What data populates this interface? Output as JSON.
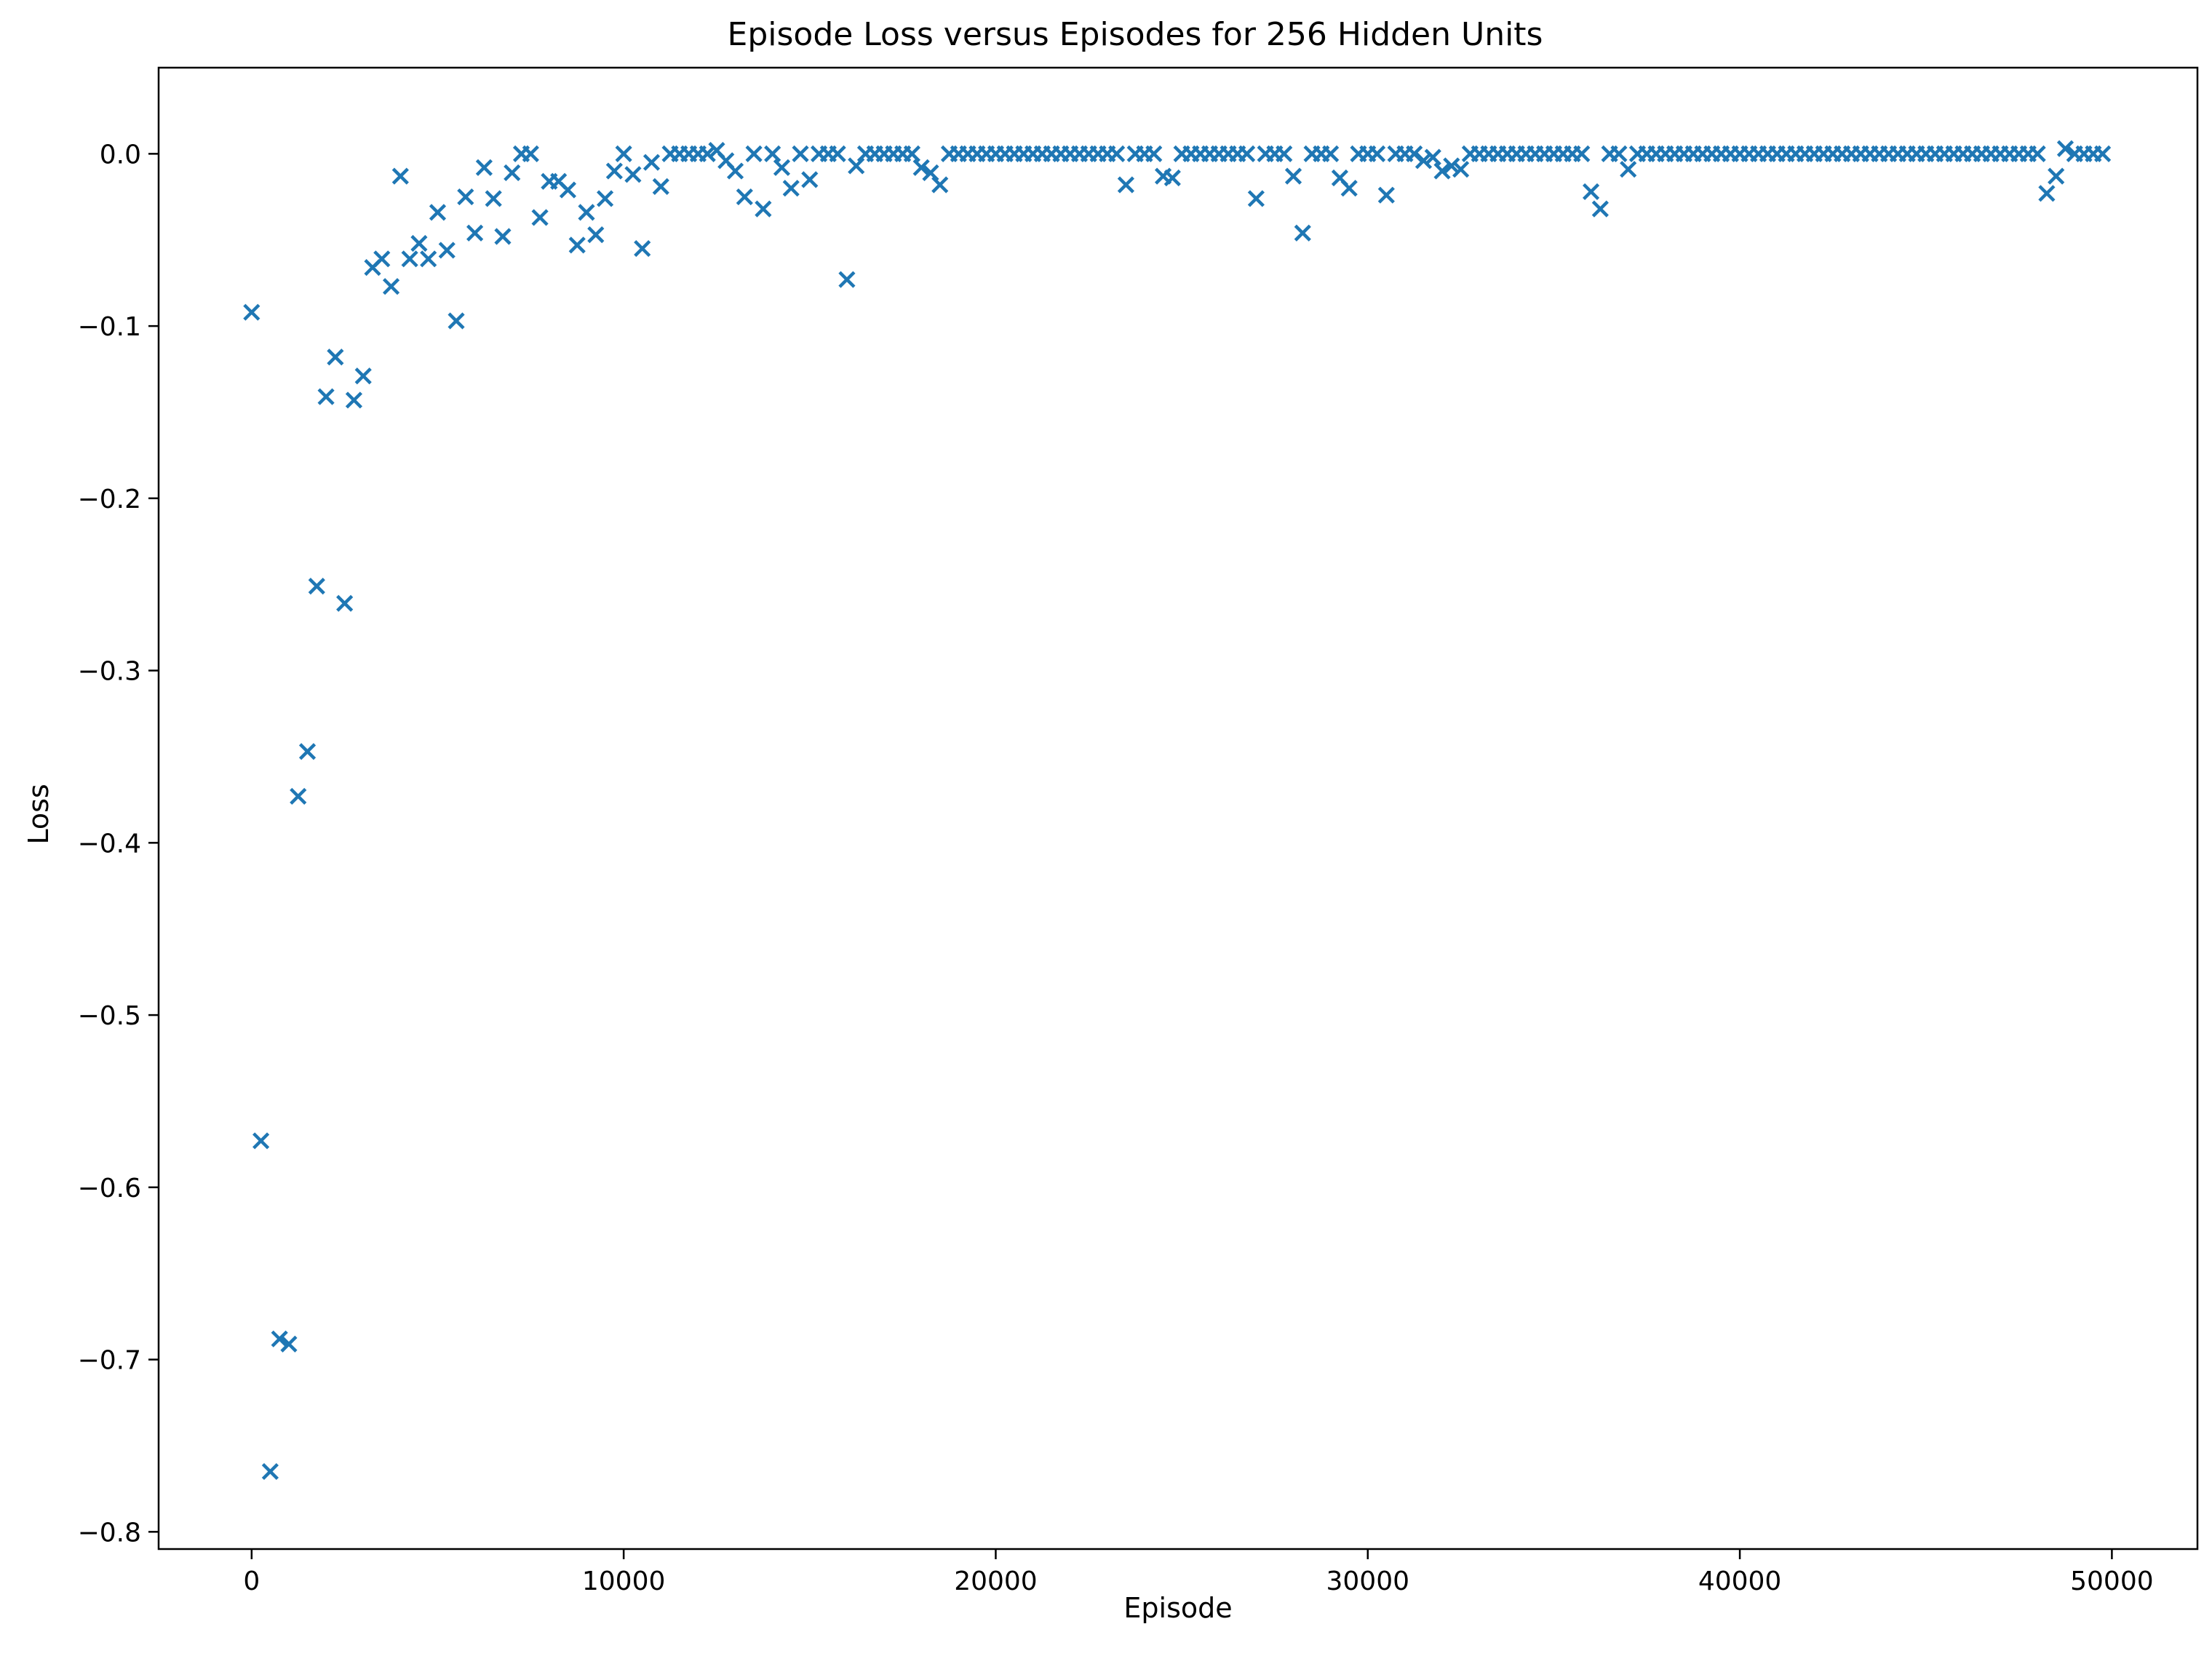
{
  "chart_data": {
    "type": "scatter",
    "title": "Episode Loss versus Episodes for 256 Hidden Units",
    "xlabel": "Episode",
    "ylabel": "Loss",
    "xlim": [
      -2500,
      52300
    ],
    "ylim": [
      -0.81,
      0.05
    ],
    "xticks": [
      0,
      10000,
      20000,
      30000,
      40000,
      50000
    ],
    "xtick_labels": [
      "0",
      "10000",
      "20000",
      "30000",
      "40000",
      "50000"
    ],
    "yticks": [
      0.0,
      -0.1,
      -0.2,
      -0.3,
      -0.4,
      -0.5,
      -0.6,
      -0.7,
      -0.8
    ],
    "ytick_labels": [
      "0.0",
      "−0.1",
      "−0.2",
      "−0.3",
      "−0.4",
      "−0.5",
      "−0.6",
      "−0.7",
      "−0.8"
    ],
    "grid": false,
    "marker": "x",
    "color": "#1f77b4",
    "series": [
      {
        "episodes_start": 0,
        "episodes_step": 250,
        "values": [
          -0.092,
          -0.573,
          -0.765,
          -0.688,
          -0.691,
          -0.373,
          -0.347,
          -0.251,
          -0.141,
          -0.118,
          -0.261,
          -0.143,
          -0.129,
          -0.066,
          -0.061,
          -0.077,
          -0.013,
          -0.061,
          -0.052,
          -0.061,
          -0.034,
          -0.056,
          -0.097,
          -0.025,
          -0.046,
          -0.008,
          -0.026,
          -0.048,
          -0.011,
          0.0,
          0.0,
          -0.037,
          -0.016,
          -0.016,
          -0.021,
          -0.053,
          -0.034,
          -0.047,
          -0.026,
          -0.01,
          0.0,
          -0.012,
          -0.055,
          -0.005,
          -0.019,
          0.0,
          0.0,
          0.0,
          0.0,
          0.0,
          0.002,
          -0.004,
          -0.01,
          -0.025,
          0.0,
          -0.032,
          0.0,
          -0.008,
          -0.02,
          0.0,
          -0.015,
          0.0,
          0.0,
          0.0,
          -0.073,
          -0.007,
          0.0,
          0.0,
          0.0,
          0.0,
          0.0,
          0.0,
          -0.008,
          -0.011,
          -0.018,
          0.0,
          0.0,
          0.0,
          0.0,
          0.0,
          0.0,
          0.0,
          0.0,
          0.0,
          0.0,
          0.0,
          0.0,
          0.0,
          0.0,
          0.0,
          0.0,
          0.0,
          0.0,
          0.0,
          -0.018,
          0.0,
          0.0,
          0.0,
          -0.013,
          -0.014,
          0.0,
          0.0,
          0.0,
          0.0,
          0.0,
          0.0,
          0.0,
          0.0,
          -0.026,
          0.0,
          0.0,
          0.0,
          -0.013,
          -0.046,
          0.0,
          0.0,
          0.0,
          -0.014,
          -0.02,
          0.0,
          0.0,
          0.0,
          -0.024,
          0.0,
          0.0,
          0.0,
          -0.004,
          -0.002,
          -0.01,
          -0.007,
          -0.009,
          0.0,
          0.0,
          0.0,
          0.0,
          0.0,
          0.0,
          0.0,
          0.0,
          0.0,
          0.0,
          0.0,
          0.0,
          0.0,
          -0.022,
          -0.032,
          0.0,
          0.0,
          -0.009,
          0.0,
          0.0,
          0.0,
          0.0,
          0.0,
          0.0,
          0.0,
          0.0,
          0.0,
          0.0,
          0.0,
          0.0,
          0.0,
          0.0,
          0.0,
          0.0,
          0.0,
          0.0,
          0.0,
          0.0,
          0.0,
          0.0,
          0.0,
          0.0,
          0.0,
          0.0,
          0.0,
          0.0,
          0.0,
          0.0,
          0.0,
          0.0,
          0.0,
          0.0,
          0.0,
          0.0,
          0.0,
          0.0,
          0.0,
          0.0,
          0.0,
          0.0,
          0.0,
          0.0,
          -0.023,
          -0.013,
          0.003,
          0.0,
          0.0,
          0.0,
          0.0
        ]
      }
    ]
  }
}
